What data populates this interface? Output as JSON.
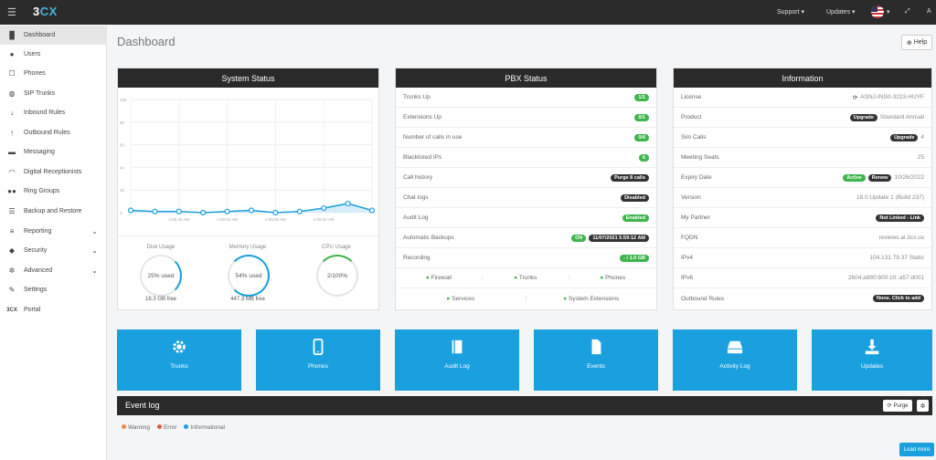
{
  "topbar": {
    "logo_a": "3",
    "logo_b": "CX",
    "support": "Support",
    "updates": "Updates",
    "user": "A"
  },
  "sidebar": {
    "items": [
      {
        "label": "Dashboard",
        "icon": "chart-icon"
      },
      {
        "label": "Users",
        "icon": "user-icon"
      },
      {
        "label": "Phones",
        "icon": "phone-icon"
      },
      {
        "label": "SIP Trunks",
        "icon": "globe-icon"
      },
      {
        "label": "Inbound Rules",
        "icon": "arrow-down-icon"
      },
      {
        "label": "Outbound Rules",
        "icon": "arrow-up-icon"
      },
      {
        "label": "Messaging",
        "icon": "chat-icon"
      },
      {
        "label": "Digital Receptionists",
        "icon": "headset-icon"
      },
      {
        "label": "Ring Groups",
        "icon": "group-icon"
      },
      {
        "label": "Backup and Restore",
        "icon": "backup-icon"
      },
      {
        "label": "Reporting",
        "icon": "list-icon"
      },
      {
        "label": "Security",
        "icon": "shield-icon"
      },
      {
        "label": "Advanced",
        "icon": "gear-icon"
      },
      {
        "label": "Settings",
        "icon": "wrench-icon"
      },
      {
        "label": "Portal",
        "icon": "3cx-icon"
      }
    ],
    "portal_prefix": "3CX"
  },
  "page": {
    "title": "Dashboard",
    "help": "Help"
  },
  "system_status": {
    "title": "System Status",
    "y_ticks": [
      "100",
      "80",
      "60",
      "40",
      "20",
      "0"
    ],
    "x_ticks": [
      "2:08:45 AM",
      "2:08:50 AM",
      "2:08:55 AM",
      "2:09:00 AM"
    ],
    "disk_label": "Disk Usage",
    "disk_value": "25% used",
    "disk_free": "18.3 GB free",
    "memory_label": "Memory Usage",
    "memory_value": "54% used",
    "memory_free": "447.3 MB free",
    "cpu_label": "CPU Usage",
    "cpu_value": "2/100%"
  },
  "chart_data": {
    "type": "line",
    "ylim": [
      0,
      100
    ],
    "x": [
      "",
      "",
      "2:08:45 AM",
      "",
      "2:08:50 AM",
      "",
      "2:08:55 AM",
      "",
      "2:09:00 AM",
      "",
      ""
    ],
    "values": [
      2,
      1,
      1,
      0,
      1,
      2,
      0,
      1,
      4,
      8,
      2
    ]
  },
  "pbx_status": {
    "title": "PBX Status",
    "trunks_up": "Trunks Up",
    "trunks_up_val": "1/1",
    "ext_up": "Extensions Up",
    "ext_up_val": "0/1",
    "calls": "Number of calls in use",
    "calls_val": "0/4",
    "blacklist": "Blacklisted IPs",
    "blacklist_val": "6",
    "history": "Call history",
    "history_val": "Purge 8 calls",
    "chat": "Chat logs",
    "chat_val": "Disabled",
    "audit": "Audit Log",
    "audit_val": "Enabled",
    "backups": "Automatic Backups",
    "backups_on": "ON",
    "backups_date": "11/07/2021 5:59:12 AM",
    "recording": "Recording",
    "recording_val": "- / 1.0 GB",
    "firewall": "Firewall",
    "trunks": "Trunks",
    "phones": "Phones",
    "services": "Services",
    "sysext": "System Extensions"
  },
  "information": {
    "title": "Information",
    "license": "License",
    "license_val": "ASNJ-INS0-3223-HUYF",
    "product": "Product",
    "product_btn": "Upgrade",
    "product_val": "Standard Annual",
    "sim": "Sim Calls",
    "sim_btn": "Upgrade",
    "sim_val": "4",
    "seats": "Meeting Seats",
    "seats_val": "25",
    "expiry": "Expiry Date",
    "expiry_active": "Active",
    "expiry_renew": "Renew",
    "expiry_val": "10/26/2022",
    "version": "Version",
    "version_val": "18.0 Update 1 (Build 237)",
    "partner": "My Partner",
    "partner_val": "Not Linked - Link",
    "fqdn": "FQDN",
    "fqdn_val": "reviews.al.3cx.us",
    "ipv4": "IPv4",
    "ipv4_val": "104.131.79.37 Static",
    "ipv6": "IPv6",
    "ipv6_val": "2604:a880:800:10::a57:d001",
    "outbound": "Outbound Rules",
    "outbound_val": "None. Click to add"
  },
  "tiles": [
    {
      "label": "Trunks",
      "icon": "gear-icon"
    },
    {
      "label": "Phones",
      "icon": "mobile-icon"
    },
    {
      "label": "Audit Log",
      "icon": "book-icon"
    },
    {
      "label": "Events",
      "icon": "document-icon"
    },
    {
      "label": "Activity Log",
      "icon": "drive-icon"
    },
    {
      "label": "Updates",
      "icon": "download-icon"
    }
  ],
  "event_log": {
    "title": "Event log",
    "purge": "Purge",
    "warning": "Warning",
    "error": "Error",
    "informational": "Informational",
    "load_more": "Load more",
    "warning_color": "#f0884b",
    "error_color": "#e05b3a",
    "info_color": "#1aa0de"
  }
}
